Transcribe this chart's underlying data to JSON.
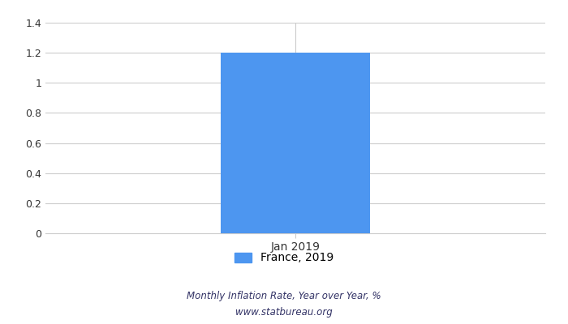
{
  "categories": [
    "Jan 2019"
  ],
  "values": [
    1.2
  ],
  "bar_color": "#4d96f0",
  "ylim": [
    0,
    1.4
  ],
  "yticks": [
    0,
    0.2,
    0.4,
    0.6,
    0.8,
    1.0,
    1.2,
    1.4
  ],
  "ytick_labels": [
    "0",
    "0.2",
    "0.4",
    "0.6",
    "0.8",
    "1",
    "1.2",
    "1.4"
  ],
  "legend_label": "France, 2019",
  "footer_line1": "Monthly Inflation Rate, Year over Year, %",
  "footer_line2": "www.statbureau.org",
  "footer_color": "#333366",
  "background_color": "#ffffff",
  "grid_color": "#cccccc",
  "tick_label_color": "#333333",
  "bar_width": 0.45
}
